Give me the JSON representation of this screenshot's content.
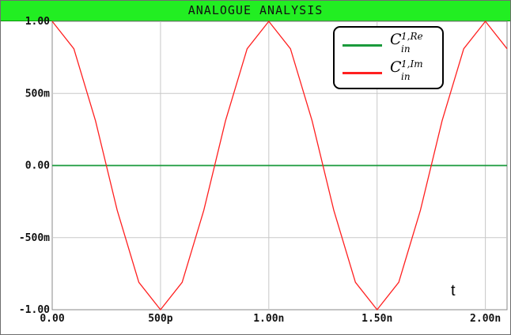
{
  "window": {
    "title": "ANALOGUE ANALYSIS"
  },
  "chart_data": {
    "type": "line",
    "x_unit": "s",
    "xlim": [
      0,
      2.1e-09
    ],
    "ylim": [
      -1.0,
      1.0
    ],
    "x_tick_values": [
      0,
      5e-10,
      1e-09,
      1.5e-09,
      2e-09
    ],
    "x_tick_labels": [
      "0.00",
      "500p",
      "1.00n",
      "1.50n",
      "2.00n"
    ],
    "y_tick_values": [
      1.0,
      0.5,
      0.0,
      -0.5,
      -1.0
    ],
    "y_tick_labels": [
      "1.00",
      "500m",
      "0.00",
      "-500m",
      "-1.00"
    ],
    "grid": true,
    "xlabel": "t",
    "legend_position": "top-right",
    "series": [
      {
        "name": "C_in^{1,Re}",
        "color": "#1a9a3c",
        "x": [
          0,
          1e-10,
          2e-10,
          3e-10,
          4e-10,
          5e-10,
          6e-10,
          7e-10,
          8e-10,
          9e-10,
          1e-09,
          1.1e-09,
          1.2e-09,
          1.3e-09,
          1.4e-09,
          1.5e-09,
          1.6e-09,
          1.7e-09,
          1.8e-09,
          1.9e-09,
          2e-09,
          2.1e-09
        ],
        "y": [
          0,
          0,
          0,
          0,
          0,
          0,
          0,
          0,
          0,
          0,
          0,
          0,
          0,
          0,
          0,
          0,
          0,
          0,
          0,
          0,
          0,
          0
        ]
      },
      {
        "name": "C_in^{1,Im}",
        "color": "#ff2020",
        "x": [
          0,
          1e-10,
          2e-10,
          3e-10,
          4e-10,
          5e-10,
          6e-10,
          7e-10,
          8e-10,
          9e-10,
          1e-09,
          1.1e-09,
          1.2e-09,
          1.3e-09,
          1.4e-09,
          1.5e-09,
          1.6e-09,
          1.7e-09,
          1.8e-09,
          1.9e-09,
          2e-09,
          2.1e-09
        ],
        "y": [
          1.0,
          0.81,
          0.31,
          -0.31,
          -0.81,
          -1.0,
          -0.81,
          -0.31,
          0.31,
          0.81,
          1.0,
          0.81,
          0.31,
          -0.31,
          -0.81,
          -1.0,
          -0.81,
          -0.31,
          0.31,
          0.81,
          1.0,
          0.81
        ]
      }
    ],
    "legend": {
      "entries": [
        {
          "base": "C",
          "sup": "1,Re",
          "sub": "in",
          "color": "#1a9a3c"
        },
        {
          "base": "C",
          "sup": "1,Im",
          "sub": "in",
          "color": "#ff2020"
        }
      ]
    }
  }
}
